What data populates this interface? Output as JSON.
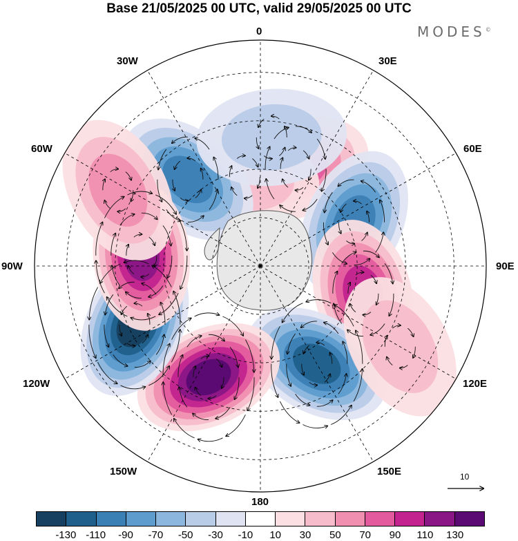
{
  "header": {
    "title": "Base 21/05/2025 00 UTC, valid 29/05/2025 00 UTC",
    "brand": "MODES",
    "brand_mark": "©"
  },
  "longitude_labels": {
    "lon_0": "0",
    "lon_30e": "30E",
    "lon_60e": "60E",
    "lon_90e": "90E",
    "lon_120e": "120E",
    "lon_150e": "150E",
    "lon_180": "180",
    "lon_150w": "150W",
    "lon_120w": "120W",
    "lon_90w": "90W",
    "lon_60w": "60W",
    "lon_30w": "30W"
  },
  "reference_vector": {
    "label": "10"
  },
  "colorbar": {
    "colors": [
      "#173f5f",
      "#1f5f8b",
      "#3b80b5",
      "#5d9ccd",
      "#8cb6de",
      "#b8cbe7",
      "#e0e4f2",
      "#ffffff",
      "#fbdfe2",
      "#f7bccb",
      "#f08fb0",
      "#e35b9e",
      "#c2238f",
      "#8a1686",
      "#5a0a72"
    ],
    "tick_labels": [
      "-130",
      "-110",
      "-90",
      "-70",
      "-50",
      "-30",
      "-10",
      "10",
      "30",
      "50",
      "70",
      "90",
      "110",
      "130"
    ]
  },
  "anomaly_centers": [
    {
      "lon": 20,
      "lat": -58,
      "value": 70
    },
    {
      "lon": -10,
      "lat": -62,
      "value": 40
    },
    {
      "lon": -40,
      "lat": -55,
      "value": -100
    },
    {
      "lon": 5,
      "lat": -50,
      "value": -40
    },
    {
      "lon": 65,
      "lat": -58,
      "value": -100
    },
    {
      "lon": 105,
      "lat": -57,
      "value": 100
    },
    {
      "lon": 150,
      "lat": -55,
      "value": -120
    },
    {
      "lon": -155,
      "lat": -52,
      "value": 140
    },
    {
      "lon": -115,
      "lat": -47,
      "value": -130
    },
    {
      "lon": -85,
      "lat": -53,
      "value": 120
    },
    {
      "lon": -62,
      "lat": -40,
      "value": 50
    },
    {
      "lon": 120,
      "lat": -40,
      "value": 40
    }
  ],
  "colors": {
    "coast": "#555555",
    "land": "#e8e8e8",
    "grid": "#000000"
  }
}
